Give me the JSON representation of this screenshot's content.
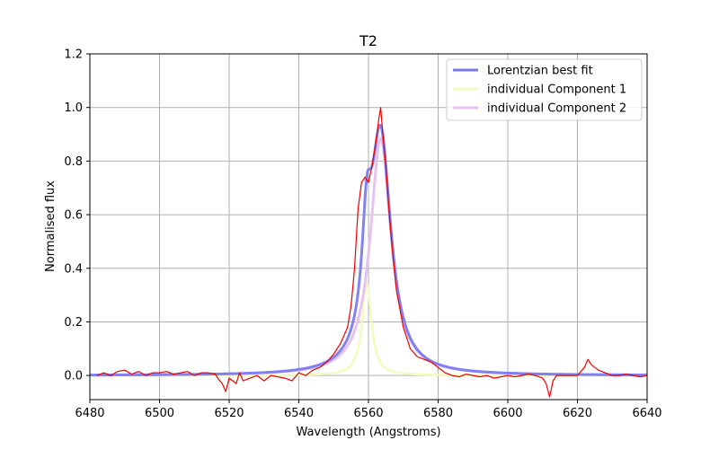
{
  "chart_data": {
    "type": "line",
    "title": "T2",
    "xlabel": "Wavelength (Angstroms)",
    "ylabel": "Normalised flux",
    "xlim": [
      6480,
      6640
    ],
    "ylim": [
      -0.09,
      1.2
    ],
    "xticks": [
      6480,
      6500,
      6520,
      6540,
      6560,
      6580,
      6600,
      6620,
      6640
    ],
    "xtick_labels": [
      "6480",
      "6500",
      "6520",
      "6540",
      "6560",
      "6580",
      "6600",
      "6620",
      "6640"
    ],
    "yticks": [
      0.0,
      0.2,
      0.4,
      0.6,
      0.8,
      1.0,
      1.2
    ],
    "ytick_labels": [
      "0.0",
      "0.2",
      "0.4",
      "0.6",
      "0.8",
      "1.0",
      "1.2"
    ],
    "grid": true,
    "legend_position": "top-right",
    "legend": [
      {
        "name": "Lorentzian best fit",
        "color": "#7b7bf0"
      },
      {
        "name": "individual Component 1",
        "color": "#f2fbc0"
      },
      {
        "name": "individual Component 2",
        "color": "#e6c2ef"
      }
    ],
    "series": [
      {
        "name": "Lorentzian best fit",
        "color": "#7b7bf0",
        "components": [
          {
            "center": 6559.5,
            "amplitude": 0.345,
            "hwhm": 1.6
          },
          {
            "center": 6563.5,
            "amplitude": 0.885,
            "hwhm": 3.6
          }
        ]
      },
      {
        "name": "individual Component 1",
        "color": "#f2fbc0",
        "components": [
          {
            "center": 6559.5,
            "amplitude": 0.345,
            "hwhm": 1.6
          }
        ]
      },
      {
        "name": "individual Component 2",
        "color": "#e6c2ef",
        "components": [
          {
            "center": 6563.5,
            "amplitude": 0.885,
            "hwhm": 3.6
          }
        ]
      },
      {
        "name": "observed spectrum",
        "color": "#ee0000",
        "x": [
          6482,
          6484,
          6486,
          6488,
          6490,
          6492,
          6494,
          6496,
          6498,
          6500,
          6502,
          6504,
          6506,
          6508,
          6510,
          6512,
          6514,
          6516,
          6517,
          6518,
          6519,
          6520,
          6522,
          6523,
          6524,
          6526,
          6528,
          6530,
          6532,
          6534,
          6536,
          6538,
          6540,
          6542,
          6544,
          6546,
          6548,
          6550,
          6552,
          6554,
          6555,
          6556,
          6557,
          6558,
          6559,
          6560,
          6561,
          6562,
          6563,
          6563.5,
          6564,
          6565,
          6566,
          6567,
          6568,
          6570,
          6572,
          6574,
          6576,
          6578,
          6580,
          6582,
          6584,
          6586,
          6588,
          6590,
          6592,
          6594,
          6596,
          6598,
          6600,
          6602,
          6604,
          6606,
          6608,
          6610,
          6611,
          6612,
          6613,
          6614,
          6616,
          6618,
          6620,
          6622,
          6623,
          6624,
          6626,
          6628,
          6630,
          6632,
          6634,
          6636,
          6638,
          6640
        ],
        "y": [
          0.0,
          0.01,
          0.0,
          0.015,
          0.02,
          0.005,
          0.015,
          0.0,
          0.01,
          0.01,
          0.015,
          0.005,
          0.01,
          0.015,
          0.0,
          0.01,
          0.01,
          0.005,
          -0.015,
          -0.03,
          -0.06,
          -0.01,
          -0.03,
          0.01,
          -0.02,
          -0.01,
          0.0,
          -0.02,
          0.0,
          -0.005,
          -0.01,
          -0.02,
          0.01,
          0.0,
          0.02,
          0.03,
          0.05,
          0.08,
          0.12,
          0.18,
          0.26,
          0.4,
          0.62,
          0.72,
          0.74,
          0.72,
          0.78,
          0.86,
          0.96,
          1.0,
          0.92,
          0.78,
          0.6,
          0.45,
          0.32,
          0.18,
          0.1,
          0.07,
          0.06,
          0.05,
          0.03,
          0.01,
          0.0,
          -0.005,
          0.005,
          0.0,
          -0.005,
          0.0,
          -0.01,
          -0.005,
          0.0,
          -0.005,
          0.0,
          0.005,
          0.0,
          -0.01,
          -0.03,
          -0.08,
          -0.02,
          0.0,
          0.0,
          0.0,
          0.0,
          0.03,
          0.06,
          0.04,
          0.02,
          0.01,
          0.0,
          0.0,
          0.005,
          0.0,
          -0.005,
          0.0
        ]
      }
    ]
  }
}
